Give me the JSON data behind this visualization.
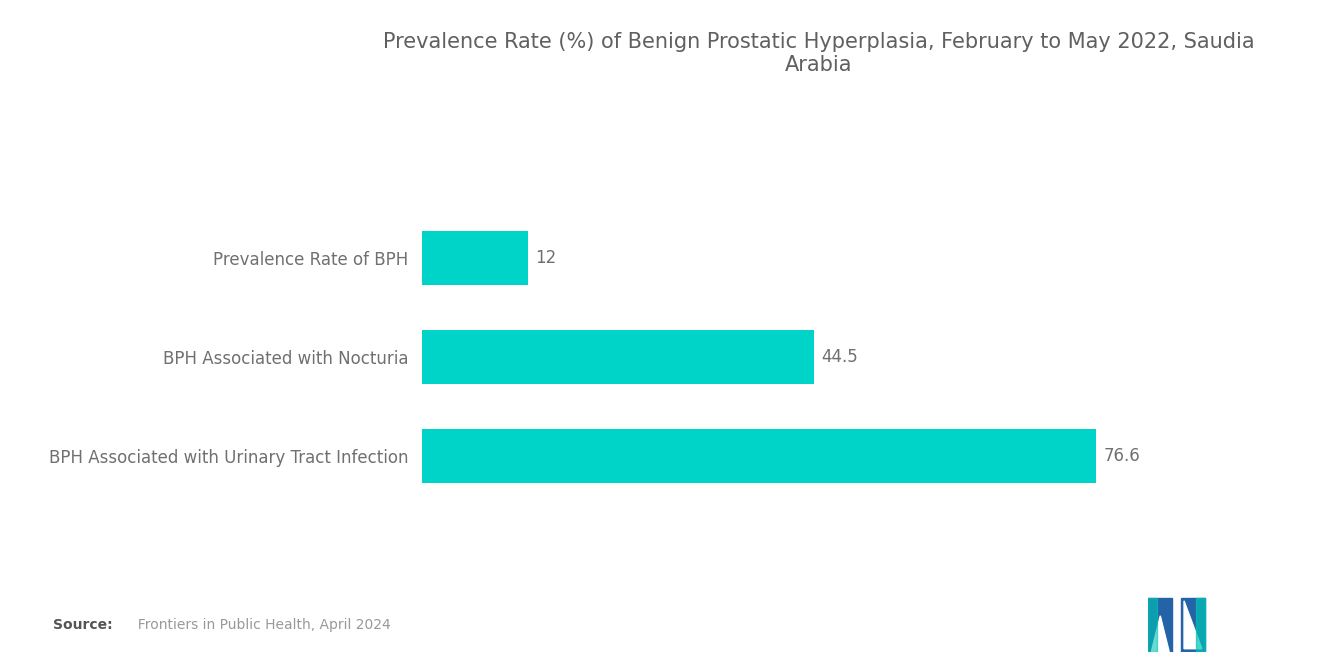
{
  "title": "Prevalence Rate (%) of Benign Prostatic Hyperplasia, February to May 2022, Saudia\nArabia",
  "categories": [
    "BPH Associated with Urinary Tract Infection",
    "BPH Associated with Nocturia",
    "Prevalence Rate of BPH"
  ],
  "values": [
    76.6,
    44.5,
    12
  ],
  "bar_color": "#00D4C8",
  "value_labels": [
    "76.6",
    "44.5",
    "12"
  ],
  "source_bold": "Source:",
  "source_text": "  Frontiers in Public Health, April 2024",
  "background_color": "#ffffff",
  "title_color": "#606060",
  "label_color": "#707070",
  "value_color": "#707070",
  "xlim": [
    0,
    90
  ],
  "title_fontsize": 15,
  "label_fontsize": 12,
  "value_fontsize": 12,
  "bar_height": 0.55
}
